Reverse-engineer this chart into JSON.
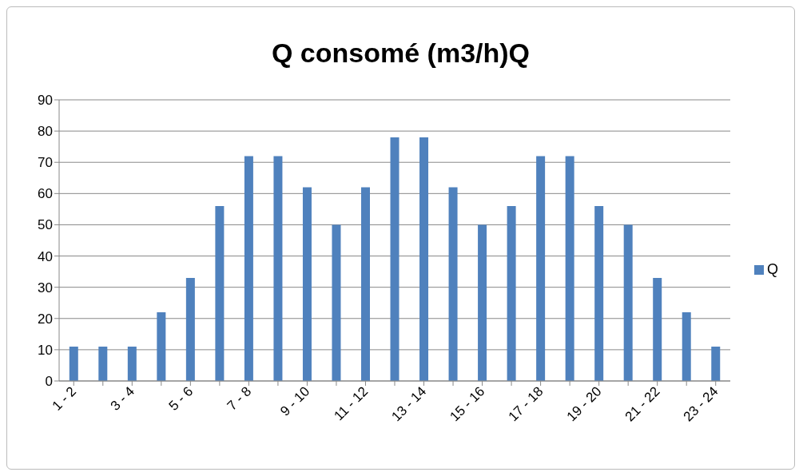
{
  "chart_data": {
    "type": "bar",
    "title": "Q consomé (m3/h)Q",
    "categories": [
      "1 - 2",
      null,
      "3 - 4",
      null,
      "5 - 6",
      null,
      "7 - 8",
      null,
      "9 - 10",
      null,
      "11 - 12",
      null,
      "13 - 14",
      null,
      "15 - 16",
      null,
      "17 - 18",
      null,
      "19 - 20",
      null,
      "21 - 22",
      null,
      "23 - 24"
    ],
    "series": [
      {
        "name": "Q",
        "color": "#4f81bd",
        "values": [
          11,
          11,
          11,
          22,
          33,
          56,
          72,
          72,
          62,
          50,
          62,
          78,
          78,
          62,
          50,
          56,
          72,
          72,
          56,
          50,
          33,
          22,
          11
        ]
      }
    ],
    "ylim": [
      0,
      90
    ],
    "yticks": [
      0,
      10,
      20,
      30,
      40,
      50,
      60,
      70,
      80,
      90
    ],
    "grid": "y",
    "legend": "right"
  }
}
